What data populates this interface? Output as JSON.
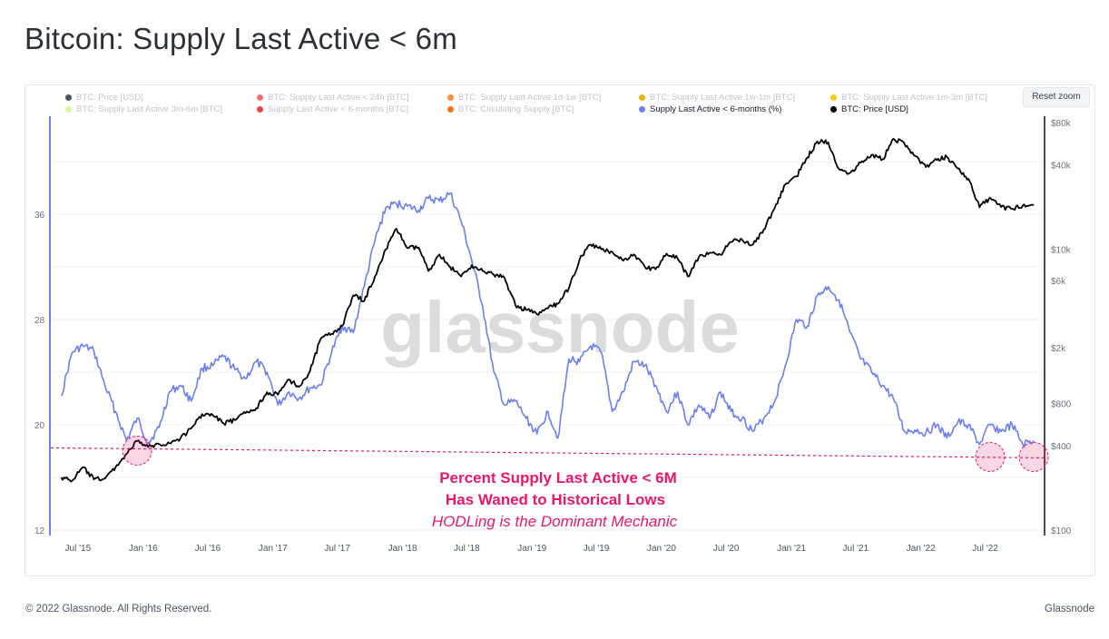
{
  "title": "Bitcoin: Supply Last Active < 6m",
  "reset_zoom_label": "Reset zoom",
  "watermark": "glassnode",
  "footer": {
    "copyright": "© 2022 Glassnode. All Rights Reserved.",
    "brand": "Glassnode"
  },
  "legend": [
    {
      "label": "BTC: Price [USD]",
      "color": "#4b5563",
      "active": false
    },
    {
      "label": "BTC: Supply Last Active < 24h [BTC]",
      "color": "#f87171",
      "active": false
    },
    {
      "label": "BTC: Supply Last Active 1d-1w [BTC]",
      "color": "#fb923c",
      "active": false
    },
    {
      "label": "BTC: Supply Last Active 1w-1m [BTC]",
      "color": "#eab308",
      "active": false
    },
    {
      "label": "BTC: Supply Last Active 1m-3m [BTC]",
      "color": "#facc15",
      "active": false
    },
    {
      "label": "BTC: Supply Last Active 3m-6m [BTC]",
      "color": "#d9f99d",
      "active": false
    },
    {
      "label": "Supply Last Active < 6-months [BTC]",
      "color": "#ef4444",
      "active": false
    },
    {
      "label": "BTC: Circulating Supply [BTC]",
      "color": "#f97316",
      "active": false
    },
    {
      "label": "Supply Last Active < 6-months (%)",
      "color": "#6b7ff0",
      "active": true
    },
    {
      "label": "BTC: Price [USD]",
      "color": "#000000",
      "active": true
    }
  ],
  "annotation": {
    "line1": "Percent Supply Last Active < 6M",
    "line2": "Has Waned to Historical Lows",
    "line3": "HODLing is the Dominant Mechanic",
    "color": "#e8196b"
  },
  "chart_data": {
    "type": "line",
    "x_tick_labels": [
      "Jul '15",
      "Jan '16",
      "Jul '16",
      "Jan '17",
      "Jul '17",
      "Jan '18",
      "Jul '18",
      "Jan '19",
      "Jul '19",
      "Jan '20",
      "Jul '20",
      "Jan '21",
      "Jul '21",
      "Jan '22",
      "Jul '22"
    ],
    "x_range": [
      "2015-05",
      "2022-11"
    ],
    "y_left": {
      "ticks": [
        "12",
        "20",
        "28",
        "36"
      ],
      "range": [
        12,
        44
      ]
    },
    "y_right": {
      "ticks": [
        "$80k",
        "$40k",
        "$10k",
        "$6k",
        "$2k",
        "$800",
        "$400",
        "$100"
      ],
      "scale": "log",
      "range": [
        100,
        100000
      ]
    },
    "reference_line_value": 17.9,
    "highlight_dates": [
      "2015-12",
      "2022-07",
      "2022-11"
    ],
    "series": [
      {
        "name": "Supply Last Active < 6-months (%)",
        "axis": "left",
        "color": "#6b7ff0",
        "points": [
          [
            "2015-05",
            22.2
          ],
          [
            "2015-06",
            25.5
          ],
          [
            "2015-07",
            26
          ],
          [
            "2015-08",
            25.6
          ],
          [
            "2015-09",
            23
          ],
          [
            "2015-10",
            21
          ],
          [
            "2015-11",
            18.8
          ],
          [
            "2015-12",
            20.5
          ],
          [
            "2016-01",
            18.6
          ],
          [
            "2016-02",
            19.8
          ],
          [
            "2016-03",
            22.5
          ],
          [
            "2016-04",
            23
          ],
          [
            "2016-05",
            21.8
          ],
          [
            "2016-06",
            24.3
          ],
          [
            "2016-07",
            24.5
          ],
          [
            "2016-08",
            25.2
          ],
          [
            "2016-09",
            24.2
          ],
          [
            "2016-10",
            23.5
          ],
          [
            "2016-11",
            24.8
          ],
          [
            "2016-12",
            24
          ],
          [
            "2017-01",
            21.5
          ],
          [
            "2017-02",
            22.5
          ],
          [
            "2017-03",
            22
          ],
          [
            "2017-04",
            22.8
          ],
          [
            "2017-05",
            23
          ],
          [
            "2017-06",
            25.5
          ],
          [
            "2017-07",
            27.5
          ],
          [
            "2017-08",
            27
          ],
          [
            "2017-09",
            30.5
          ],
          [
            "2017-10",
            34
          ],
          [
            "2017-11",
            36.5
          ],
          [
            "2017-12",
            36.8
          ],
          [
            "2018-01",
            36.6
          ],
          [
            "2018-02",
            36.3
          ],
          [
            "2018-03",
            37.2
          ],
          [
            "2018-04",
            37
          ],
          [
            "2018-05",
            37.6
          ],
          [
            "2018-06",
            35.5
          ],
          [
            "2018-07",
            32.5
          ],
          [
            "2018-08",
            29
          ],
          [
            "2018-09",
            24
          ],
          [
            "2018-10",
            21.5
          ],
          [
            "2018-11",
            21.8
          ],
          [
            "2018-12",
            20.5
          ],
          [
            "2019-01",
            19.3
          ],
          [
            "2019-02",
            21
          ],
          [
            "2019-03",
            19
          ],
          [
            "2019-04",
            25
          ],
          [
            "2019-05",
            24.8
          ],
          [
            "2019-06",
            26
          ],
          [
            "2019-07",
            25.5
          ],
          [
            "2019-08",
            21
          ],
          [
            "2019-09",
            22.5
          ],
          [
            "2019-10",
            24.8
          ],
          [
            "2019-11",
            24.5
          ],
          [
            "2019-12",
            23
          ],
          [
            "2020-01",
            21
          ],
          [
            "2020-02",
            22.5
          ],
          [
            "2020-03",
            20
          ],
          [
            "2020-04",
            21.5
          ],
          [
            "2020-05",
            20.5
          ],
          [
            "2020-06",
            22.5
          ],
          [
            "2020-07",
            21
          ],
          [
            "2020-08",
            20.5
          ],
          [
            "2020-09",
            19.5
          ],
          [
            "2020-10",
            20.5
          ],
          [
            "2020-11",
            21.8
          ],
          [
            "2020-12",
            24.5
          ],
          [
            "2021-01",
            28
          ],
          [
            "2021-02",
            27.5
          ],
          [
            "2021-03",
            29.8
          ],
          [
            "2021-04",
            30.5
          ],
          [
            "2021-05",
            29.5
          ],
          [
            "2021-06",
            27
          ],
          [
            "2021-07",
            25
          ],
          [
            "2021-08",
            24
          ],
          [
            "2021-09",
            23
          ],
          [
            "2021-10",
            22
          ],
          [
            "2021-11",
            19.5
          ],
          [
            "2021-12",
            19.6
          ],
          [
            "2022-01",
            19.4
          ],
          [
            "2022-02",
            20
          ],
          [
            "2022-03",
            19
          ],
          [
            "2022-04",
            20.2
          ],
          [
            "2022-05",
            20
          ],
          [
            "2022-06",
            18.5
          ],
          [
            "2022-07",
            20
          ],
          [
            "2022-08",
            19.5
          ],
          [
            "2022-09",
            20
          ],
          [
            "2022-10",
            18.5
          ],
          [
            "2022-11",
            18.8
          ]
        ]
      },
      {
        "name": "BTC: Price [USD]",
        "axis": "right",
        "color": "#000000",
        "points": [
          [
            "2015-05",
            237
          ],
          [
            "2015-06",
            225
          ],
          [
            "2015-07",
            280
          ],
          [
            "2015-08",
            230
          ],
          [
            "2015-09",
            233
          ],
          [
            "2015-10",
            280
          ],
          [
            "2015-11",
            350
          ],
          [
            "2015-12",
            430
          ],
          [
            "2016-01",
            390
          ],
          [
            "2016-02",
            410
          ],
          [
            "2016-03",
            415
          ],
          [
            "2016-04",
            450
          ],
          [
            "2016-05",
            530
          ],
          [
            "2016-06",
            670
          ],
          [
            "2016-07",
            660
          ],
          [
            "2016-08",
            575
          ],
          [
            "2016-09",
            608
          ],
          [
            "2016-10",
            680
          ],
          [
            "2016-11",
            740
          ],
          [
            "2016-12",
            960
          ],
          [
            "2017-01",
            920
          ],
          [
            "2017-02",
            1180
          ],
          [
            "2017-03",
            1050
          ],
          [
            "2017-04",
            1350
          ],
          [
            "2017-05",
            2300
          ],
          [
            "2017-06",
            2500
          ],
          [
            "2017-07",
            2850
          ],
          [
            "2017-08",
            4700
          ],
          [
            "2017-09",
            4300
          ],
          [
            "2017-10",
            6400
          ],
          [
            "2017-11",
            10000
          ],
          [
            "2017-12",
            14000
          ],
          [
            "2018-01",
            10200
          ],
          [
            "2018-02",
            10300
          ],
          [
            "2018-03",
            7000
          ],
          [
            "2018-04",
            9200
          ],
          [
            "2018-05",
            7500
          ],
          [
            "2018-06",
            6400
          ],
          [
            "2018-07",
            7700
          ],
          [
            "2018-08",
            7000
          ],
          [
            "2018-09",
            6600
          ],
          [
            "2018-10",
            6300
          ],
          [
            "2018-11",
            4000
          ],
          [
            "2018-12",
            3700
          ],
          [
            "2019-01",
            3450
          ],
          [
            "2019-02",
            3800
          ],
          [
            "2019-03",
            4100
          ],
          [
            "2019-04",
            5300
          ],
          [
            "2019-05",
            8500
          ],
          [
            "2019-06",
            10800
          ],
          [
            "2019-07",
            10000
          ],
          [
            "2019-08",
            9600
          ],
          [
            "2019-09",
            8300
          ],
          [
            "2019-10",
            9200
          ],
          [
            "2019-11",
            7500
          ],
          [
            "2019-12",
            7200
          ],
          [
            "2020-01",
            9300
          ],
          [
            "2020-02",
            8600
          ],
          [
            "2020-03",
            6400
          ],
          [
            "2020-04",
            8800
          ],
          [
            "2020-05",
            9450
          ],
          [
            "2020-06",
            9150
          ],
          [
            "2020-07",
            11300
          ],
          [
            "2020-08",
            11700
          ],
          [
            "2020-09",
            10800
          ],
          [
            "2020-10",
            13800
          ],
          [
            "2020-11",
            19700
          ],
          [
            "2020-12",
            29000
          ],
          [
            "2021-01",
            33100
          ],
          [
            "2021-02",
            45100
          ],
          [
            "2021-03",
            58800
          ],
          [
            "2021-04",
            57700
          ],
          [
            "2021-05",
            37300
          ],
          [
            "2021-06",
            35000
          ],
          [
            "2021-07",
            41500
          ],
          [
            "2021-08",
            47100
          ],
          [
            "2021-09",
            43800
          ],
          [
            "2021-10",
            61300
          ],
          [
            "2021-11",
            57000
          ],
          [
            "2021-12",
            46300
          ],
          [
            "2022-01",
            38500
          ],
          [
            "2022-02",
            43200
          ],
          [
            "2022-03",
            45500
          ],
          [
            "2022-04",
            37700
          ],
          [
            "2022-05",
            31800
          ],
          [
            "2022-06",
            19900
          ],
          [
            "2022-07",
            23300
          ],
          [
            "2022-08",
            20000
          ],
          [
            "2022-09",
            19400
          ],
          [
            "2022-10",
            20500
          ],
          [
            "2022-11",
            20600
          ]
        ]
      }
    ]
  }
}
